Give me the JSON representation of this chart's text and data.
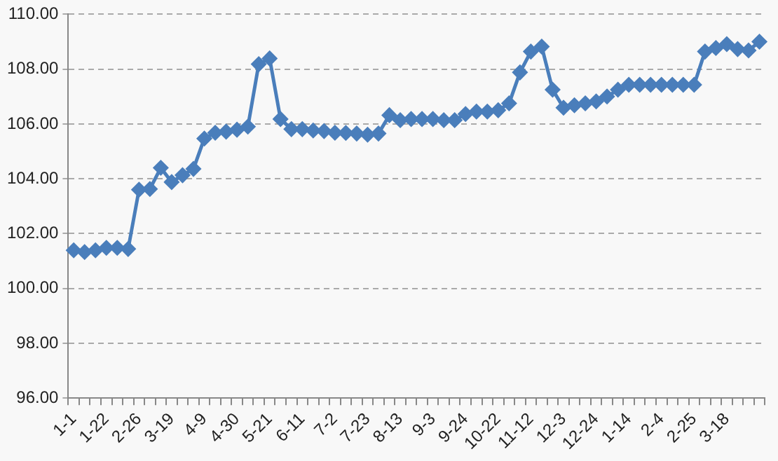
{
  "chart_data": {
    "type": "line",
    "categories": [
      "1-1",
      null,
      null,
      "1-22",
      null,
      null,
      "2-26",
      null,
      null,
      "3-19",
      null,
      null,
      "4-9",
      null,
      null,
      "4-30",
      null,
      null,
      "5-21",
      null,
      null,
      "6-11",
      null,
      null,
      "7-2",
      null,
      null,
      "7-23",
      null,
      null,
      "8-13",
      null,
      null,
      "9-3",
      null,
      null,
      "9-24",
      null,
      null,
      "10-22",
      null,
      null,
      "11-12",
      null,
      null,
      "12-3",
      null,
      null,
      "12-24",
      null,
      null,
      "1-14",
      null,
      null,
      "2-4",
      null,
      null,
      "2-25",
      null,
      null,
      "3-18",
      null,
      null,
      null
    ],
    "series": [
      {
        "color": "#4a7ebb",
        "values": [
          101.39,
          101.33,
          101.39,
          101.48,
          101.48,
          101.44,
          103.6,
          103.63,
          104.4,
          103.88,
          104.13,
          104.36,
          105.47,
          105.68,
          105.72,
          105.79,
          105.9,
          108.18,
          108.39,
          106.18,
          105.81,
          105.81,
          105.76,
          105.74,
          105.68,
          105.67,
          105.65,
          105.61,
          105.65,
          106.32,
          106.14,
          106.18,
          106.18,
          106.18,
          106.14,
          106.14,
          106.36,
          106.45,
          106.45,
          106.5,
          106.75,
          107.88,
          108.64,
          108.82,
          107.25,
          106.59,
          106.68,
          106.75,
          106.82,
          107.0,
          107.25,
          107.43,
          107.43,
          107.43,
          107.43,
          107.43,
          107.43,
          107.43,
          108.64,
          108.77,
          108.91,
          108.73,
          108.68,
          109.0
        ]
      }
    ],
    "ylim": [
      96,
      110
    ],
    "yticks": [
      {
        "value": 96,
        "label": "96.00"
      },
      {
        "value": 98,
        "label": "98.00"
      },
      {
        "value": 100,
        "label": "100.00"
      },
      {
        "value": 102,
        "label": "102.00"
      },
      {
        "value": 104,
        "label": "104.00"
      },
      {
        "value": 106,
        "label": "106.00"
      },
      {
        "value": 108,
        "label": "108.00"
      },
      {
        "value": 110,
        "label": "110.00"
      }
    ],
    "grid": "y",
    "legend": false,
    "marker": "diamond",
    "line_style": "solid"
  }
}
